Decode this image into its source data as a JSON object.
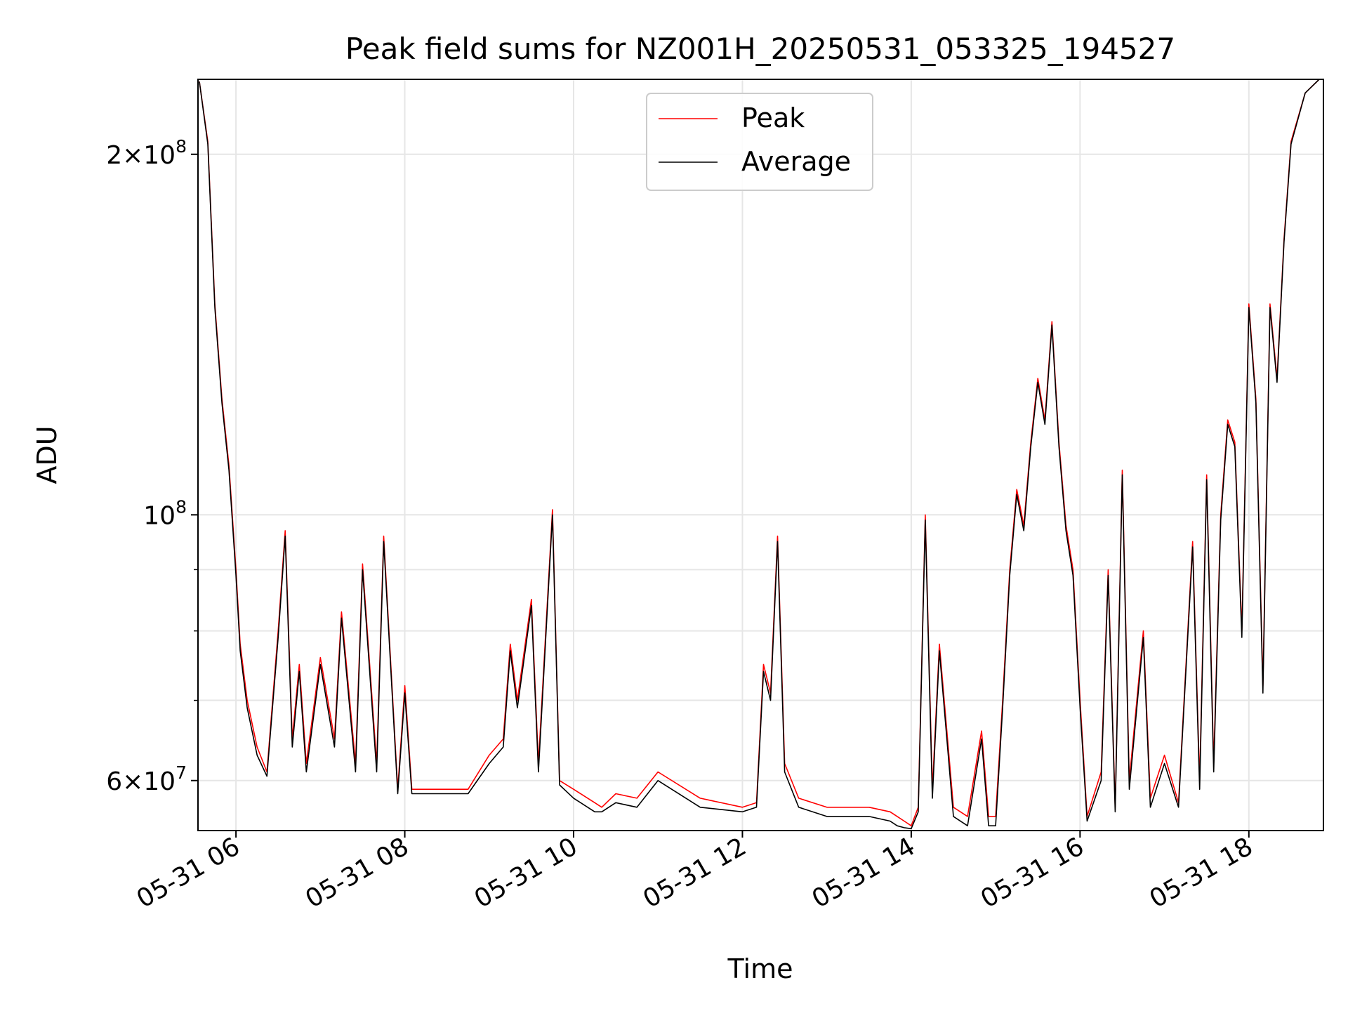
{
  "chart_data": {
    "type": "line",
    "title": "Peak field sums for NZ001H_20250531_053325_194527",
    "xlabel": "Time",
    "ylabel": "ADU",
    "y_scale": "log",
    "ylim": [
      54500000,
      231000000
    ],
    "xlim": [
      "2025-05-31 05:33",
      "2025-05-31 18:53"
    ],
    "x_ticks": [
      {
        "value": "2025-05-31 06:00",
        "label": "05-31 06"
      },
      {
        "value": "2025-05-31 08:00",
        "label": "05-31 08"
      },
      {
        "value": "2025-05-31 10:00",
        "label": "05-31 10"
      },
      {
        "value": "2025-05-31 12:00",
        "label": "05-31 12"
      },
      {
        "value": "2025-05-31 14:00",
        "label": "05-31 14"
      },
      {
        "value": "2025-05-31 16:00",
        "label": "05-31 16"
      },
      {
        "value": "2025-05-31 18:00",
        "label": "05-31 18"
      }
    ],
    "y_ticks_major": [
      {
        "value": 60000000,
        "base": "6",
        "exp": "7"
      },
      {
        "value": 100000000,
        "base": "",
        "exp": "8"
      },
      {
        "value": 200000000,
        "base": "2",
        "exp": "8"
      }
    ],
    "y_ticks_minor": [
      70000000,
      80000000,
      90000000
    ],
    "grid": true,
    "legend_position": "upper center",
    "series": [
      {
        "name": "Peak",
        "color": "#ff0000",
        "x": [
          "2025-05-31 05:34",
          "2025-05-31 05:40",
          "2025-05-31 05:45",
          "2025-05-31 05:50",
          "2025-05-31 05:55",
          "2025-05-31 06:00",
          "2025-05-31 06:03",
          "2025-05-31 06:08",
          "2025-05-31 06:15",
          "2025-05-31 06:22",
          "2025-05-31 06:30",
          "2025-05-31 06:35",
          "2025-05-31 06:40",
          "2025-05-31 06:45",
          "2025-05-31 06:50",
          "2025-05-31 07:00",
          "2025-05-31 07:10",
          "2025-05-31 07:15",
          "2025-05-31 07:25",
          "2025-05-31 07:30",
          "2025-05-31 07:40",
          "2025-05-31 07:45",
          "2025-05-31 07:55",
          "2025-05-31 08:00",
          "2025-05-31 08:05",
          "2025-05-31 08:30",
          "2025-05-31 08:45",
          "2025-05-31 09:00",
          "2025-05-31 09:10",
          "2025-05-31 09:15",
          "2025-05-31 09:20",
          "2025-05-31 09:30",
          "2025-05-31 09:35",
          "2025-05-31 09:45",
          "2025-05-31 09:50",
          "2025-05-31 10:00",
          "2025-05-31 10:15",
          "2025-05-31 10:20",
          "2025-05-31 10:30",
          "2025-05-31 10:45",
          "2025-05-31 11:00",
          "2025-05-31 11:30",
          "2025-05-31 12:00",
          "2025-05-31 12:10",
          "2025-05-31 12:15",
          "2025-05-31 12:20",
          "2025-05-31 12:25",
          "2025-05-31 12:30",
          "2025-05-31 12:40",
          "2025-05-31 13:00",
          "2025-05-31 13:30",
          "2025-05-31 13:45",
          "2025-05-31 13:50",
          "2025-05-31 13:55",
          "2025-05-31 14:00",
          "2025-05-31 14:05",
          "2025-05-31 14:10",
          "2025-05-31 14:15",
          "2025-05-31 14:20",
          "2025-05-31 14:30",
          "2025-05-31 14:40",
          "2025-05-31 14:50",
          "2025-05-31 14:55",
          "2025-05-31 15:00",
          "2025-05-31 15:05",
          "2025-05-31 15:10",
          "2025-05-31 15:15",
          "2025-05-31 15:20",
          "2025-05-31 15:25",
          "2025-05-31 15:30",
          "2025-05-31 15:35",
          "2025-05-31 15:40",
          "2025-05-31 15:45",
          "2025-05-31 15:50",
          "2025-05-31 15:55",
          "2025-05-31 16:00",
          "2025-05-31 16:05",
          "2025-05-31 16:15",
          "2025-05-31 16:20",
          "2025-05-31 16:25",
          "2025-05-31 16:30",
          "2025-05-31 16:35",
          "2025-05-31 16:45",
          "2025-05-31 16:50",
          "2025-05-31 17:00",
          "2025-05-31 17:10",
          "2025-05-31 17:20",
          "2025-05-31 17:25",
          "2025-05-31 17:30",
          "2025-05-31 17:35",
          "2025-05-31 17:40",
          "2025-05-31 17:45",
          "2025-05-31 17:50",
          "2025-05-31 17:55",
          "2025-05-31 18:00",
          "2025-05-31 18:05",
          "2025-05-31 18:10",
          "2025-05-31 18:15",
          "2025-05-31 18:20",
          "2025-05-31 18:25",
          "2025-05-31 18:30",
          "2025-05-31 18:40",
          "2025-05-31 18:50"
        ],
        "y": [
          230000000,
          205000000,
          150000000,
          125000000,
          110000000,
          90000000,
          78000000,
          70000000,
          64000000,
          61000000,
          80000000,
          97000000,
          65000000,
          75000000,
          62000000,
          76000000,
          65000000,
          83000000,
          62000000,
          91000000,
          62000000,
          96000000,
          59000000,
          72000000,
          59000000,
          59000000,
          59000000,
          63000000,
          65000000,
          78000000,
          70000000,
          85000000,
          62000000,
          101000000,
          60000000,
          59000000,
          57500000,
          57000000,
          58500000,
          58000000,
          61000000,
          58000000,
          57000000,
          57500000,
          75000000,
          71000000,
          96000000,
          62000000,
          58000000,
          57000000,
          57000000,
          56500000,
          56000000,
          55500000,
          55000000,
          57000000,
          100000000,
          59000000,
          78000000,
          57000000,
          56000000,
          66000000,
          56000000,
          56000000,
          70000000,
          90000000,
          105000000,
          98000000,
          115000000,
          130000000,
          120000000,
          145000000,
          115000000,
          98000000,
          90000000,
          70000000,
          56000000,
          61000000,
          90000000,
          57000000,
          109000000,
          60000000,
          80000000,
          58000000,
          63000000,
          57500000,
          95000000,
          60000000,
          108000000,
          62000000,
          100000000,
          120000000,
          115000000,
          80000000,
          150000000,
          125000000,
          72000000,
          150000000,
          130000000,
          170000000,
          205000000,
          225000000,
          231000000
        ]
      },
      {
        "name": "Average",
        "color": "#000000",
        "x": [
          "2025-05-31 05:34",
          "2025-05-31 05:40",
          "2025-05-31 05:45",
          "2025-05-31 05:50",
          "2025-05-31 05:55",
          "2025-05-31 06:00",
          "2025-05-31 06:03",
          "2025-05-31 06:08",
          "2025-05-31 06:15",
          "2025-05-31 06:22",
          "2025-05-31 06:30",
          "2025-05-31 06:35",
          "2025-05-31 06:40",
          "2025-05-31 06:45",
          "2025-05-31 06:50",
          "2025-05-31 07:00",
          "2025-05-31 07:10",
          "2025-05-31 07:15",
          "2025-05-31 07:25",
          "2025-05-31 07:30",
          "2025-05-31 07:40",
          "2025-05-31 07:45",
          "2025-05-31 07:55",
          "2025-05-31 08:00",
          "2025-05-31 08:05",
          "2025-05-31 08:30",
          "2025-05-31 08:45",
          "2025-05-31 09:00",
          "2025-05-31 09:10",
          "2025-05-31 09:15",
          "2025-05-31 09:20",
          "2025-05-31 09:30",
          "2025-05-31 09:35",
          "2025-05-31 09:45",
          "2025-05-31 09:50",
          "2025-05-31 10:00",
          "2025-05-31 10:15",
          "2025-05-31 10:20",
          "2025-05-31 10:30",
          "2025-05-31 10:45",
          "2025-05-31 11:00",
          "2025-05-31 11:30",
          "2025-05-31 12:00",
          "2025-05-31 12:10",
          "2025-05-31 12:15",
          "2025-05-31 12:20",
          "2025-05-31 12:25",
          "2025-05-31 12:30",
          "2025-05-31 12:40",
          "2025-05-31 13:00",
          "2025-05-31 13:30",
          "2025-05-31 13:45",
          "2025-05-31 13:50",
          "2025-05-31 13:55",
          "2025-05-31 14:00",
          "2025-05-31 14:05",
          "2025-05-31 14:10",
          "2025-05-31 14:15",
          "2025-05-31 14:20",
          "2025-05-31 14:30",
          "2025-05-31 14:40",
          "2025-05-31 14:50",
          "2025-05-31 14:55",
          "2025-05-31 15:00",
          "2025-05-31 15:05",
          "2025-05-31 15:10",
          "2025-05-31 15:15",
          "2025-05-31 15:20",
          "2025-05-31 15:25",
          "2025-05-31 15:30",
          "2025-05-31 15:35",
          "2025-05-31 15:40",
          "2025-05-31 15:45",
          "2025-05-31 15:50",
          "2025-05-31 15:55",
          "2025-05-31 16:00",
          "2025-05-31 16:05",
          "2025-05-31 16:15",
          "2025-05-31 16:20",
          "2025-05-31 16:25",
          "2025-05-31 16:30",
          "2025-05-31 16:35",
          "2025-05-31 16:45",
          "2025-05-31 16:50",
          "2025-05-31 17:00",
          "2025-05-31 17:10",
          "2025-05-31 17:20",
          "2025-05-31 17:25",
          "2025-05-31 17:30",
          "2025-05-31 17:35",
          "2025-05-31 17:40",
          "2025-05-31 17:45",
          "2025-05-31 17:50",
          "2025-05-31 17:55",
          "2025-05-31 18:00",
          "2025-05-31 18:05",
          "2025-05-31 18:10",
          "2025-05-31 18:15",
          "2025-05-31 18:20",
          "2025-05-31 18:25",
          "2025-05-31 18:30",
          "2025-05-31 18:40",
          "2025-05-31 18:50"
        ],
        "y": [
          230000000,
          204000000,
          149000000,
          124000000,
          109000000,
          89000000,
          77000000,
          69000000,
          63000000,
          60500000,
          79000000,
          96000000,
          64000000,
          74000000,
          61000000,
          75000000,
          64000000,
          82000000,
          61000000,
          90000000,
          61000000,
          95000000,
          58500000,
          71000000,
          58500000,
          58500000,
          58500000,
          62000000,
          64000000,
          77000000,
          69000000,
          84000000,
          61000000,
          100000000,
          59500000,
          58000000,
          56500000,
          56500000,
          57500000,
          57000000,
          60000000,
          57000000,
          56500000,
          57000000,
          74000000,
          70000000,
          95000000,
          61000000,
          57000000,
          56000000,
          56000000,
          55500000,
          55000000,
          54800000,
          54700000,
          56500000,
          99000000,
          58000000,
          77000000,
          56000000,
          55000000,
          65000000,
          55000000,
          55000000,
          69000000,
          89000000,
          104000000,
          97000000,
          114000000,
          129000000,
          119000000,
          144000000,
          114000000,
          97000000,
          89000000,
          69000000,
          55500000,
          60000000,
          89000000,
          56500000,
          108000000,
          59000000,
          79000000,
          57000000,
          62000000,
          57000000,
          94000000,
          59000000,
          107000000,
          61000000,
          99000000,
          119000000,
          114000000,
          79000000,
          149000000,
          124000000,
          71000000,
          149000000,
          129000000,
          169000000,
          204000000,
          225000000,
          231000000
        ]
      }
    ]
  }
}
